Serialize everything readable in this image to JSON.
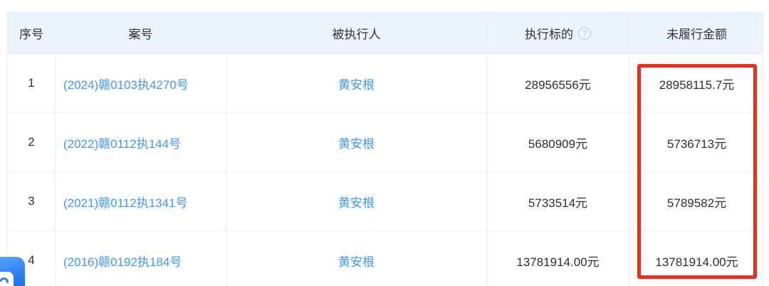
{
  "table": {
    "columns": [
      {
        "label": "序号"
      },
      {
        "label": "案号"
      },
      {
        "label": "被执行人"
      },
      {
        "label": "执行标的"
      },
      {
        "label": "未履行金额"
      }
    ],
    "rows": [
      {
        "index": "1",
        "case_no": "(2024)赣0103执4270号",
        "person": "黄安根",
        "target": "28956556元",
        "unfulfilled": "28958115.7元"
      },
      {
        "index": "2",
        "case_no": "(2022)赣0112执144号",
        "person": "黄安根",
        "target": "5680909元",
        "unfulfilled": "5736713元"
      },
      {
        "index": "3",
        "case_no": "(2021)赣0112执1341号",
        "person": "黄安根",
        "target": "5733514元",
        "unfulfilled": "5789582元"
      },
      {
        "index": "4",
        "case_no": "(2016)赣0192执184号",
        "person": "黄安根",
        "target": "13781914.00元",
        "unfulfilled": "13781914.00元"
      }
    ]
  },
  "help_icon_glyph": "?",
  "colors": {
    "link_blue": "#3e96fa",
    "header_bg": "#edf3fb",
    "highlight_red": "#ee2c1a",
    "divider": "#e8edf6",
    "text_dark": "#2f2f2f"
  }
}
